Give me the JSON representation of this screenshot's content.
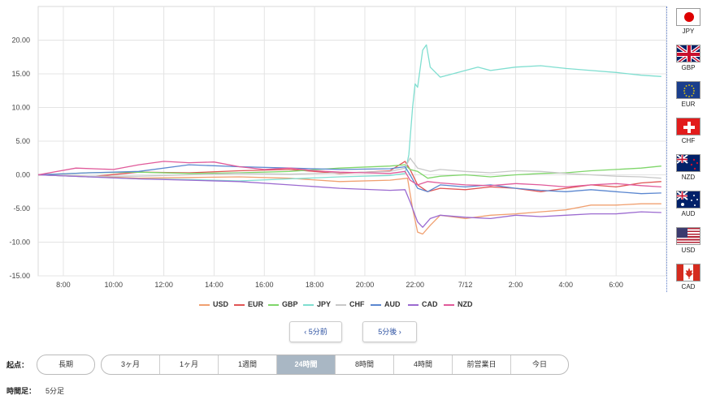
{
  "chart_data": {
    "type": "line",
    "x_ticks": [
      "8:00",
      "10:00",
      "12:00",
      "14:00",
      "16:00",
      "18:00",
      "20:00",
      "22:00",
      "7/12",
      "2:00",
      "4:00",
      "6:00"
    ],
    "y_ticks": [
      "20.00",
      "15.00",
      "10.00",
      "5.00",
      "0.00",
      "-5.00",
      "-10.00",
      "-15.00"
    ],
    "ylim": [
      -15,
      25
    ],
    "x_hours": [
      7,
      32
    ],
    "grid": true,
    "legend_position": "bottom",
    "series": [
      {
        "name": "USD",
        "color": "#f0a070",
        "points": [
          [
            7,
            0
          ],
          [
            9,
            -0.2
          ],
          [
            11,
            -0.5
          ],
          [
            13,
            -0.4
          ],
          [
            15,
            -0.3
          ],
          [
            17,
            -0.5
          ],
          [
            19,
            -1.0
          ],
          [
            21,
            -0.8
          ],
          [
            21.7,
            -0.5
          ],
          [
            21.9,
            -5
          ],
          [
            22.1,
            -8.5
          ],
          [
            22.3,
            -8.8
          ],
          [
            22.6,
            -7.5
          ],
          [
            23,
            -6
          ],
          [
            24,
            -6.5
          ],
          [
            25,
            -6
          ],
          [
            26,
            -5.8
          ],
          [
            27,
            -5.5
          ],
          [
            28,
            -5.2
          ],
          [
            29,
            -4.5
          ],
          [
            30,
            -4.5
          ],
          [
            31,
            -4.3
          ],
          [
            31.8,
            -4.3
          ]
        ]
      },
      {
        "name": "EUR",
        "color": "#e05555",
        "points": [
          [
            7,
            0
          ],
          [
            9,
            -0.3
          ],
          [
            11,
            0.4
          ],
          [
            13,
            0.3
          ],
          [
            15,
            0.6
          ],
          [
            17,
            0.8
          ],
          [
            19,
            0.2
          ],
          [
            21,
            0.6
          ],
          [
            21.6,
            2
          ],
          [
            21.8,
            0.8
          ],
          [
            22.1,
            -1.5
          ],
          [
            22.5,
            -2.5
          ],
          [
            23,
            -2
          ],
          [
            24,
            -2.2
          ],
          [
            25,
            -1.8
          ],
          [
            26,
            -2
          ],
          [
            27,
            -2.5
          ],
          [
            28,
            -2
          ],
          [
            29,
            -1.5
          ],
          [
            30,
            -1.8
          ],
          [
            31,
            -1.2
          ],
          [
            31.8,
            -1
          ]
        ]
      },
      {
        "name": "GBP",
        "color": "#7fd66a",
        "points": [
          [
            7,
            0
          ],
          [
            9,
            0.3
          ],
          [
            11,
            0.4
          ],
          [
            13,
            0.2
          ],
          [
            15,
            0.3
          ],
          [
            17,
            0.5
          ],
          [
            19,
            1.0
          ],
          [
            21,
            1.3
          ],
          [
            21.6,
            1.5
          ],
          [
            21.8,
            0.8
          ],
          [
            22.1,
            0.5
          ],
          [
            22.5,
            -0.5
          ],
          [
            23,
            -0.2
          ],
          [
            24,
            0
          ],
          [
            25,
            -0.3
          ],
          [
            26,
            0
          ],
          [
            27,
            0.2
          ],
          [
            28,
            0.3
          ],
          [
            29,
            0.6
          ],
          [
            30,
            0.8
          ],
          [
            31,
            1.0
          ],
          [
            31.8,
            1.3
          ]
        ]
      },
      {
        "name": "JPY",
        "color": "#7fded0",
        "points": [
          [
            7,
            0
          ],
          [
            9,
            -0.3
          ],
          [
            11,
            -0.6
          ],
          [
            13,
            -0.7
          ],
          [
            15,
            -0.9
          ],
          [
            17,
            -0.6
          ],
          [
            19,
            -0.3
          ],
          [
            21,
            -0.1
          ],
          [
            21.6,
            0.2
          ],
          [
            21.75,
            3
          ],
          [
            21.9,
            10
          ],
          [
            22.0,
            13.5
          ],
          [
            22.1,
            13
          ],
          [
            22.3,
            18.5
          ],
          [
            22.45,
            19.3
          ],
          [
            22.6,
            16
          ],
          [
            23,
            14.5
          ],
          [
            23.5,
            15
          ],
          [
            24,
            15.5
          ],
          [
            24.5,
            16
          ],
          [
            25,
            15.5
          ],
          [
            26,
            16
          ],
          [
            27,
            16.2
          ],
          [
            28,
            15.8
          ],
          [
            29,
            15.5
          ],
          [
            30,
            15.2
          ],
          [
            31,
            14.8
          ],
          [
            31.8,
            14.6
          ]
        ]
      },
      {
        "name": "CHF",
        "color": "#c8c8c8",
        "points": [
          [
            7,
            0
          ],
          [
            9,
            -0.2
          ],
          [
            11,
            -0.2
          ],
          [
            13,
            0
          ],
          [
            15,
            0.2
          ],
          [
            17,
            0.1
          ],
          [
            19,
            0.3
          ],
          [
            21,
            0.5
          ],
          [
            21.6,
            1.0
          ],
          [
            21.8,
            2.5
          ],
          [
            22.1,
            1
          ],
          [
            22.6,
            0.5
          ],
          [
            23,
            0.8
          ],
          [
            24,
            0.5
          ],
          [
            25,
            0.3
          ],
          [
            26,
            0.6
          ],
          [
            27,
            0.5
          ],
          [
            28,
            0.2
          ],
          [
            29,
            0
          ],
          [
            30,
            -0.2
          ],
          [
            31,
            -0.3
          ],
          [
            31.8,
            -0.5
          ]
        ]
      },
      {
        "name": "AUD",
        "color": "#5b87d0",
        "points": [
          [
            7,
            0
          ],
          [
            9,
            0.3
          ],
          [
            11,
            0.5
          ],
          [
            13,
            1.5
          ],
          [
            15,
            1.2
          ],
          [
            17,
            1.0
          ],
          [
            19,
            0.8
          ],
          [
            21,
            0.9
          ],
          [
            21.6,
            1.2
          ],
          [
            21.8,
            0
          ],
          [
            22.1,
            -2
          ],
          [
            22.5,
            -2.5
          ],
          [
            23,
            -1.5
          ],
          [
            24,
            -1.8
          ],
          [
            25,
            -1.5
          ],
          [
            26,
            -2
          ],
          [
            27,
            -2.3
          ],
          [
            28,
            -2.5
          ],
          [
            29,
            -2.2
          ],
          [
            30,
            -2.5
          ],
          [
            31,
            -2.8
          ],
          [
            31.8,
            -2.7
          ]
        ]
      },
      {
        "name": "CAD",
        "color": "#9b6ad0",
        "points": [
          [
            7,
            0
          ],
          [
            9,
            -0.3
          ],
          [
            11,
            -0.6
          ],
          [
            13,
            -0.8
          ],
          [
            15,
            -1.0
          ],
          [
            17,
            -1.5
          ],
          [
            19,
            -2.0
          ],
          [
            21,
            -2.3
          ],
          [
            21.6,
            -2.2
          ],
          [
            21.8,
            -4
          ],
          [
            22.1,
            -7
          ],
          [
            22.3,
            -7.8
          ],
          [
            22.6,
            -6.5
          ],
          [
            23,
            -6
          ],
          [
            24,
            -6.3
          ],
          [
            25,
            -6.5
          ],
          [
            26,
            -6
          ],
          [
            27,
            -6.2
          ],
          [
            28,
            -6
          ],
          [
            29,
            -5.8
          ],
          [
            30,
            -5.8
          ],
          [
            31,
            -5.5
          ],
          [
            31.8,
            -5.6
          ]
        ]
      },
      {
        "name": "NZD",
        "color": "#e05a9a",
        "points": [
          [
            7,
            0
          ],
          [
            8.5,
            1.0
          ],
          [
            10,
            0.8
          ],
          [
            11,
            1.5
          ],
          [
            12,
            2.0
          ],
          [
            13,
            1.8
          ],
          [
            14,
            1.9
          ],
          [
            15,
            1.2
          ],
          [
            16,
            0.8
          ],
          [
            17,
            1.0
          ],
          [
            18,
            0.6
          ],
          [
            19,
            0.4
          ],
          [
            20,
            0.3
          ],
          [
            21,
            0.2
          ],
          [
            21.6,
            0.5
          ],
          [
            21.8,
            -0.8
          ],
          [
            22.1,
            -1.5
          ],
          [
            22.5,
            -1
          ],
          [
            23,
            -1.2
          ],
          [
            24,
            -1.5
          ],
          [
            25,
            -1.6
          ],
          [
            26,
            -1.3
          ],
          [
            27,
            -1.5
          ],
          [
            28,
            -1.8
          ],
          [
            29,
            -1.5
          ],
          [
            30,
            -1.3
          ],
          [
            31,
            -1.6
          ],
          [
            31.8,
            -1.8
          ]
        ]
      }
    ]
  },
  "flags": [
    {
      "code": "JPY"
    },
    {
      "code": "GBP"
    },
    {
      "code": "EUR"
    },
    {
      "code": "CHF"
    },
    {
      "code": "NZD"
    },
    {
      "code": "AUD"
    },
    {
      "code": "USD"
    },
    {
      "code": "CAD"
    }
  ],
  "nav": {
    "prev_label": "‹ 5分前",
    "next_label": "5分後 ›"
  },
  "controls": {
    "start_label": "起点：",
    "long_label": "長期",
    "periods": [
      "3ヶ月",
      "1ヶ月",
      "1週間",
      "24時間",
      "8時間",
      "4時間",
      "前営業日",
      "今日"
    ],
    "active_period": "24時間",
    "interval_label": "時間足：",
    "interval_value": "5分足"
  }
}
